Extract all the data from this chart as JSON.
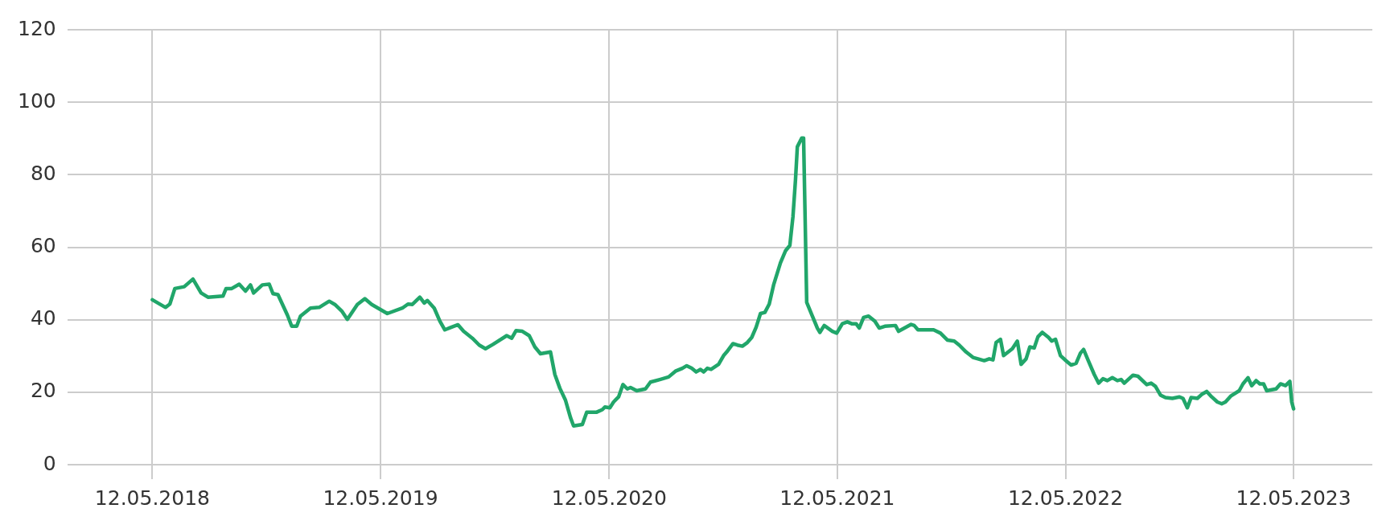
{
  "chart_data": {
    "type": "line",
    "grid": true,
    "legend": false,
    "marker": "none",
    "line_style": "solid",
    "xlim": [
      "2017-12-27",
      "2023-09-15"
    ],
    "xticks": [
      {
        "value": "2018-05-12",
        "label": "12.05.2018"
      },
      {
        "value": "2019-05-12",
        "label": "12.05.2019"
      },
      {
        "value": "2020-05-12",
        "label": "12.05.2020"
      },
      {
        "value": "2021-05-12",
        "label": "12.05.2021"
      },
      {
        "value": "2022-05-12",
        "label": "12.05.2022"
      },
      {
        "value": "2023-05-12",
        "label": "12.05.2023"
      }
    ],
    "ylim": [
      0,
      120
    ],
    "yticks": [
      0,
      20,
      40,
      60,
      80,
      100,
      120
    ],
    "series": [
      {
        "color": "#21a66a",
        "x": [
          "2018-05-12",
          "2018-06-02",
          "2018-06-09",
          "2018-06-17",
          "2018-07-02",
          "2018-07-16",
          "2018-07-29",
          "2018-08-09",
          "2018-09-02",
          "2018-09-07",
          "2018-09-16",
          "2018-09-28",
          "2018-10-08",
          "2018-10-16",
          "2018-10-21",
          "2018-11-04",
          "2018-11-15",
          "2018-11-21",
          "2018-11-29",
          "2018-12-14",
          "2018-12-21",
          "2018-12-29",
          "2019-01-04",
          "2019-01-20",
          "2019-02-03",
          "2019-02-19",
          "2019-02-28",
          "2019-03-11",
          "2019-03-20",
          "2019-04-05",
          "2019-04-17",
          "2019-04-28",
          "2019-05-08",
          "2019-05-23",
          "2019-06-16",
          "2019-06-25",
          "2019-07-02",
          "2019-07-14",
          "2019-07-21",
          "2019-07-26",
          "2019-08-06",
          "2019-08-15",
          "2019-08-23",
          "2019-09-02",
          "2019-09-13",
          "2019-09-22",
          "2019-10-06",
          "2019-10-17",
          "2019-10-27",
          "2019-11-08",
          "2019-11-30",
          "2019-12-08",
          "2019-12-15",
          "2019-12-25",
          "2020-01-05",
          "2020-01-14",
          "2020-01-23",
          "2020-02-08",
          "2020-02-15",
          "2020-02-23",
          "2020-03-03",
          "2020-03-11",
          "2020-03-16",
          "2020-03-30",
          "2020-04-06",
          "2020-04-22",
          "2020-05-01",
          "2020-05-05",
          "2020-05-13",
          "2020-05-19",
          "2020-05-27",
          "2020-06-03",
          "2020-06-10",
          "2020-06-15",
          "2020-06-25",
          "2020-07-09",
          "2020-07-17",
          "2020-08-01",
          "2020-08-15",
          "2020-08-26",
          "2020-09-06",
          "2020-09-13",
          "2020-09-21",
          "2020-09-28",
          "2020-10-05",
          "2020-10-10",
          "2020-10-16",
          "2020-10-22",
          "2020-11-03",
          "2020-11-11",
          "2020-11-16",
          "2020-11-26",
          "2020-12-03",
          "2020-12-11",
          "2020-12-19",
          "2020-12-26",
          "2021-01-02",
          "2021-01-09",
          "2021-01-16",
          "2021-01-23",
          "2021-01-30",
          "2021-02-10",
          "2021-02-18",
          "2021-02-25",
          "2021-03-02",
          "2021-03-06",
          "2021-03-09",
          "2021-03-16",
          "2021-03-19",
          "2021-03-24",
          "2021-04-02",
          "2021-04-10",
          "2021-04-14",
          "2021-04-21",
          "2021-05-04",
          "2021-05-11",
          "2021-05-20",
          "2021-05-28",
          "2021-06-04",
          "2021-06-11",
          "2021-06-16",
          "2021-06-23",
          "2021-07-01",
          "2021-07-11",
          "2021-07-18",
          "2021-07-27",
          "2021-08-13",
          "2021-08-18",
          "2021-09-07",
          "2021-09-12",
          "2021-09-18",
          "2021-10-13",
          "2021-10-24",
          "2021-11-04",
          "2021-11-15",
          "2021-11-23",
          "2021-12-04",
          "2021-12-15",
          "2021-12-23",
          "2022-01-02",
          "2022-01-10",
          "2022-01-16",
          "2022-01-21",
          "2022-01-28",
          "2022-02-02",
          "2022-02-16",
          "2022-02-24",
          "2022-03-02",
          "2022-03-10",
          "2022-03-16",
          "2022-03-23",
          "2022-03-29",
          "2022-04-05",
          "2022-04-15",
          "2022-04-20",
          "2022-04-26",
          "2022-05-04",
          "2022-05-14",
          "2022-05-21",
          "2022-05-29",
          "2022-06-05",
          "2022-06-10",
          "2022-06-17",
          "2022-06-27",
          "2022-07-04",
          "2022-07-11",
          "2022-07-18",
          "2022-07-26",
          "2022-08-03",
          "2022-08-09",
          "2022-08-14",
          "2022-08-28",
          "2022-09-05",
          "2022-09-19",
          "2022-09-26",
          "2022-10-03",
          "2022-10-11",
          "2022-10-19",
          "2022-10-30",
          "2022-11-10",
          "2022-11-16",
          "2022-11-23",
          "2022-11-29",
          "2022-12-09",
          "2022-12-16",
          "2022-12-24",
          "2023-01-01",
          "2023-01-10",
          "2023-01-17",
          "2023-01-23",
          "2023-02-01",
          "2023-02-14",
          "2023-02-20",
          "2023-02-28",
          "2023-03-06",
          "2023-03-13",
          "2023-03-19",
          "2023-03-25",
          "2023-03-30",
          "2023-04-14",
          "2023-04-21",
          "2023-04-29",
          "2023-05-06",
          "2023-05-09",
          "2023-05-12"
        ],
        "values": [
          45.5,
          43.4,
          44.3,
          48.6,
          49.1,
          51.2,
          47.4,
          46.2,
          46.5,
          48.6,
          48.6,
          49.8,
          47.9,
          49.6,
          47.4,
          49.6,
          49.8,
          47.2,
          46.9,
          41.3,
          38.2,
          38.2,
          41.0,
          43.2,
          43.4,
          45.1,
          44.2,
          42.4,
          40.1,
          44.2,
          45.8,
          44.2,
          43.2,
          41.7,
          43.2,
          44.3,
          44.2,
          46.2,
          44.6,
          45.3,
          43.2,
          39.6,
          37.2,
          37.9,
          38.6,
          36.8,
          34.9,
          33.0,
          32.0,
          33.2,
          35.6,
          34.9,
          37.0,
          36.8,
          35.6,
          32.5,
          30.6,
          31.1,
          24.9,
          21.1,
          17.8,
          13.0,
          10.7,
          11.1,
          14.5,
          14.5,
          15.2,
          15.9,
          15.7,
          17.3,
          18.7,
          22.1,
          20.9,
          21.3,
          20.4,
          20.9,
          22.8,
          23.5,
          24.2,
          25.8,
          26.6,
          27.3,
          26.6,
          25.6,
          26.3,
          25.6,
          26.6,
          26.3,
          27.7,
          30.1,
          31.1,
          33.4,
          33.0,
          32.7,
          33.7,
          35.1,
          37.9,
          41.7,
          42.0,
          44.3,
          49.6,
          55.7,
          59.0,
          60.5,
          68.5,
          78.5,
          87.7,
          90.1,
          90.1,
          44.8,
          41.0,
          37.7,
          36.5,
          38.4,
          36.8,
          36.3,
          38.9,
          39.4,
          38.9,
          38.9,
          37.7,
          40.6,
          41.0,
          39.6,
          37.7,
          38.2,
          38.4,
          36.8,
          38.7,
          38.4,
          37.2,
          37.2,
          36.3,
          34.4,
          34.1,
          33.0,
          31.1,
          29.6,
          29.2,
          28.7,
          29.2,
          28.9,
          33.7,
          34.6,
          30.1,
          32.0,
          34.1,
          27.7,
          29.2,
          32.5,
          32.2,
          35.3,
          36.5,
          35.1,
          34.1,
          34.6,
          30.1,
          28.5,
          27.5,
          28.0,
          30.8,
          31.8,
          28.9,
          24.9,
          22.5,
          23.7,
          23.2,
          24.0,
          23.2,
          23.5,
          22.5,
          24.7,
          24.4,
          22.1,
          22.5,
          21.6,
          19.2,
          18.5,
          18.3,
          18.7,
          18.3,
          15.7,
          18.5,
          18.3,
          19.4,
          20.2,
          18.7,
          17.3,
          16.8,
          17.3,
          19.0,
          20.4,
          22.3,
          24.0,
          21.8,
          23.2,
          22.3,
          22.3,
          20.4,
          20.9,
          22.3,
          21.8,
          23.0,
          17.3,
          15.4
        ]
      }
    ]
  }
}
